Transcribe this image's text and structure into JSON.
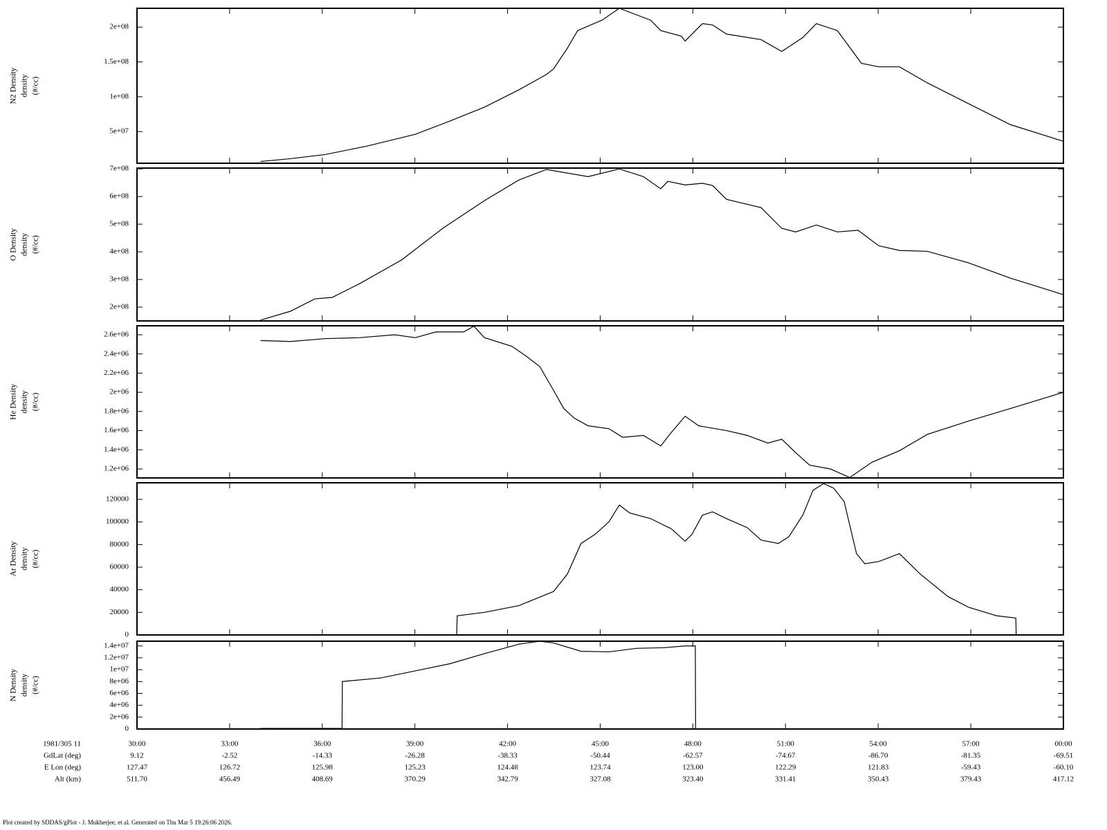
{
  "chart_data": [
    {
      "type": "line",
      "y_label": [
        "N2 Density",
        "density",
        "(#/cc)"
      ],
      "color": "#000000",
      "x": [
        34.0,
        34.97,
        36.09,
        37.44,
        39.01,
        40.13,
        41.25,
        42.37,
        43.26,
        43.49,
        43.94,
        44.27,
        45.06,
        45.62,
        46.63,
        46.96,
        47.63,
        47.75,
        48.31,
        48.64,
        49.09,
        50.21,
        50.88,
        51.56,
        52.0,
        52.68,
        53.46,
        54.02,
        54.69,
        55.59,
        56.93,
        58.28,
        60.0
      ],
      "values": [
        7000000.0,
        11000000.0,
        17000000.0,
        29000000.0,
        46000000.0,
        65000000.0,
        85000000.0,
        110000000.0,
        132000000.0,
        140000000.0,
        170000000.0,
        195000000.0,
        210000000.0,
        227000000.0,
        210000000.0,
        195000000.0,
        187000000.0,
        180000000.0,
        205000000.0,
        203000000.0,
        190000000.0,
        182000000.0,
        165000000.0,
        185000000.0,
        205000000.0,
        195000000.0,
        148000000.0,
        143000000.0,
        143000000.0,
        120000000.0,
        90000000.0,
        60000000.0,
        36000000.0
      ],
      "xlim": [
        30,
        60
      ],
      "ylim": [
        4500000.0,
        227000000.0
      ],
      "yticks": [
        {
          "value": 50000000.0,
          "label": "5e+07"
        },
        {
          "value": 100000000.0,
          "label": "1e+08"
        },
        {
          "value": 150000000.0,
          "label": "1.5e+08"
        },
        {
          "value": 200000000.0,
          "label": "2e+08"
        }
      ]
    },
    {
      "type": "line",
      "y_label": [
        "O Density",
        "density",
        "(#/cc)"
      ],
      "color": "#000000",
      "x": [
        34.0,
        34.97,
        35.76,
        36.32,
        37.21,
        38.56,
        39.9,
        41.25,
        42.37,
        43.26,
        44.61,
        45.62,
        46.4,
        46.96,
        47.19,
        47.75,
        48.31,
        48.64,
        49.09,
        50.21,
        50.88,
        51.33,
        52.0,
        52.68,
        53.35,
        54.02,
        54.69,
        55.59,
        56.93,
        58.28,
        60.0
      ],
      "values": [
        153000000.0,
        185000000.0,
        230000000.0,
        235000000.0,
        285000000.0,
        370000000.0,
        485000000.0,
        585000000.0,
        660000000.0,
        698000000.0,
        672000000.0,
        700000000.0,
        672000000.0,
        628000000.0,
        655000000.0,
        642000000.0,
        648000000.0,
        640000000.0,
        590000000.0,
        560000000.0,
        485000000.0,
        472000000.0,
        497000000.0,
        472000000.0,
        478000000.0,
        422000000.0,
        405000000.0,
        402000000.0,
        360000000.0,
        305000000.0,
        245000000.0
      ],
      "xlim": [
        30,
        60
      ],
      "ylim": [
        150000000.0,
        703000000.0
      ],
      "yticks": [
        {
          "value": 200000000.0,
          "label": "2e+08"
        },
        {
          "value": 300000000.0,
          "label": "3e+08"
        },
        {
          "value": 400000000.0,
          "label": "4e+08"
        },
        {
          "value": 500000000.0,
          "label": "5e+08"
        },
        {
          "value": 600000000.0,
          "label": "6e+08"
        },
        {
          "value": 700000000.0,
          "label": "7e+08"
        }
      ]
    },
    {
      "type": "line",
      "y_label": [
        "He Density",
        "density",
        "(#/cc)"
      ],
      "color": "#000000",
      "x": [
        34.0,
        34.97,
        36.09,
        37.21,
        38.34,
        39.01,
        39.68,
        40.58,
        40.91,
        41.25,
        42.14,
        42.59,
        43.04,
        43.49,
        43.82,
        44.16,
        44.61,
        45.28,
        45.73,
        46.4,
        46.96,
        47.3,
        47.75,
        48.19,
        49.09,
        49.76,
        50.43,
        50.88,
        51.33,
        51.78,
        52.45,
        53.08,
        53.8,
        54.69,
        55.59,
        56.93,
        58.28,
        60.0
      ],
      "values": [
        2540000,
        2530000,
        2560000,
        2570000,
        2600000,
        2570000,
        2630000,
        2630000,
        2690000,
        2570000,
        2480000,
        2380000,
        2270000,
        2020000,
        1830000,
        1730000,
        1650000,
        1620000,
        1530000,
        1550000,
        1440000,
        1580000,
        1750000,
        1650000,
        1600000,
        1550000,
        1470000,
        1510000,
        1370000,
        1240000,
        1200000,
        1110000,
        1270000,
        1390000,
        1560000,
        1700000,
        1830000,
        2000000
      ],
      "xlim": [
        30,
        60
      ],
      "ylim": [
        1106000.0,
        2694000.0
      ],
      "yticks": [
        {
          "value": 1200000.0,
          "label": "1.2e+06"
        },
        {
          "value": 1400000.0,
          "label": "1.4e+06"
        },
        {
          "value": 1600000.0,
          "label": "1.6e+06"
        },
        {
          "value": 1800000.0,
          "label": "1.8e+06"
        },
        {
          "value": 2000000.0,
          "label": "2e+06"
        },
        {
          "value": 2200000.0,
          "label": "2.2e+06"
        },
        {
          "value": 2400000.0,
          "label": "2.4e+06"
        },
        {
          "value": 2600000.0,
          "label": "2.6e+06"
        }
      ]
    },
    {
      "type": "line",
      "y_label": [
        "Ar Density",
        "density",
        "(#/cc)"
      ],
      "color": "#000000",
      "x": [
        34.0,
        40.35,
        40.37,
        41.25,
        42.37,
        43.49,
        43.94,
        44.38,
        44.83,
        45.28,
        45.62,
        45.95,
        46.63,
        47.3,
        47.75,
        47.97,
        48.31,
        48.64,
        49.09,
        49.76,
        50.21,
        50.77,
        51.11,
        51.56,
        51.89,
        52.23,
        52.56,
        52.9,
        53.3,
        53.57,
        54.02,
        54.69,
        55.36,
        56.26,
        56.93,
        57.83,
        58.46,
        58.47
      ],
      "values": [
        0,
        0,
        17000,
        20000,
        26000,
        38500,
        54000,
        81000,
        89000,
        100000,
        115000,
        108000,
        103000,
        94000,
        83000,
        89000,
        106000,
        109000,
        103000,
        95000,
        84000,
        81000,
        87000,
        106000,
        128000,
        134000,
        130000,
        118000,
        72000,
        63000,
        65000,
        72000,
        54000,
        34000,
        24500,
        17000,
        15000,
        0
      ],
      "xlim": [
        30,
        60
      ],
      "ylim": [
        0,
        134700
      ],
      "yticks": [
        0,
        20000,
        40000,
        60000,
        80000,
        100000,
        120000
      ]
    },
    {
      "type": "line",
      "y_label": [
        "N Density",
        "density",
        "(#/cc)"
      ],
      "color": "#000000",
      "x": [
        34.0,
        36.64,
        36.65,
        37.89,
        39.01,
        40.13,
        41.25,
        42.37,
        43.04,
        43.49,
        44.38,
        45.28,
        46.18,
        47.07,
        47.75,
        48.08,
        48.09,
        60.0
      ],
      "values": [
        100000,
        100000,
        8000000,
        8600000,
        9800000,
        11000000,
        12700000,
        14300000,
        14800000,
        14500000,
        13100000,
        13000000,
        13600000,
        13700000,
        14000000,
        14000000,
        0,
        0
      ],
      "xlim": [
        30,
        60
      ],
      "ylim": [
        0,
        14800000.0
      ],
      "yticks": [
        0,
        {
          "value": 2000000.0,
          "label": "2e+06"
        },
        {
          "value": 4000000.0,
          "label": "4e+06"
        },
        {
          "value": 6000000.0,
          "label": "6e+06"
        },
        {
          "value": 8000000.0,
          "label": "8e+06"
        },
        {
          "value": 10000000.0,
          "label": "1e+07"
        },
        {
          "value": 12000000.0,
          "label": "1.2e+07"
        },
        {
          "value": 14000000.0,
          "label": "1.4e+07"
        }
      ],
      "xticks": [
        {
          "value": 30,
          "label": "30:00"
        },
        {
          "value": 33,
          "label": "33:00"
        },
        {
          "value": 36,
          "label": "36:00"
        },
        {
          "value": 39,
          "label": "39:00"
        },
        {
          "value": 42,
          "label": "42:00"
        },
        {
          "value": 45,
          "label": "45:00"
        },
        {
          "value": 48,
          "label": "48:00"
        },
        {
          "value": 51,
          "label": "51:00"
        },
        {
          "value": 54,
          "label": "54:00"
        },
        {
          "value": 57,
          "label": "57:00"
        },
        {
          "value": 60,
          "label": "00:00"
        }
      ]
    }
  ],
  "ephemeris": {
    "time_label": "1981/305 11",
    "rows": [
      {
        "label": "GdLat (deg)",
        "values": [
          "9.12",
          "-2.52",
          "-14.33",
          "-26.28",
          "-38.33",
          "-50.44",
          "-62.57",
          "-74.67",
          "-86.70",
          "-81.35",
          "-69.51"
        ]
      },
      {
        "label": "E Lon (deg)",
        "values": [
          "127.47",
          "126.72",
          "125.98",
          "125.23",
          "124.48",
          "123.74",
          "123.00",
          "122.29",
          "121.83",
          "-59.43",
          "-60.10"
        ]
      },
      {
        "label": "Alt (km)",
        "values": [
          "511.70",
          "456.49",
          "408.69",
          "370.29",
          "342.79",
          "327.08",
          "323.40",
          "331.41",
          "350.43",
          "379.43",
          "417.12"
        ]
      }
    ]
  },
  "footer": "Plot created by SDDAS/gPlot - J. Mukherjee, et al.  Generated on Thu Mar 5 19:26:06 2026."
}
